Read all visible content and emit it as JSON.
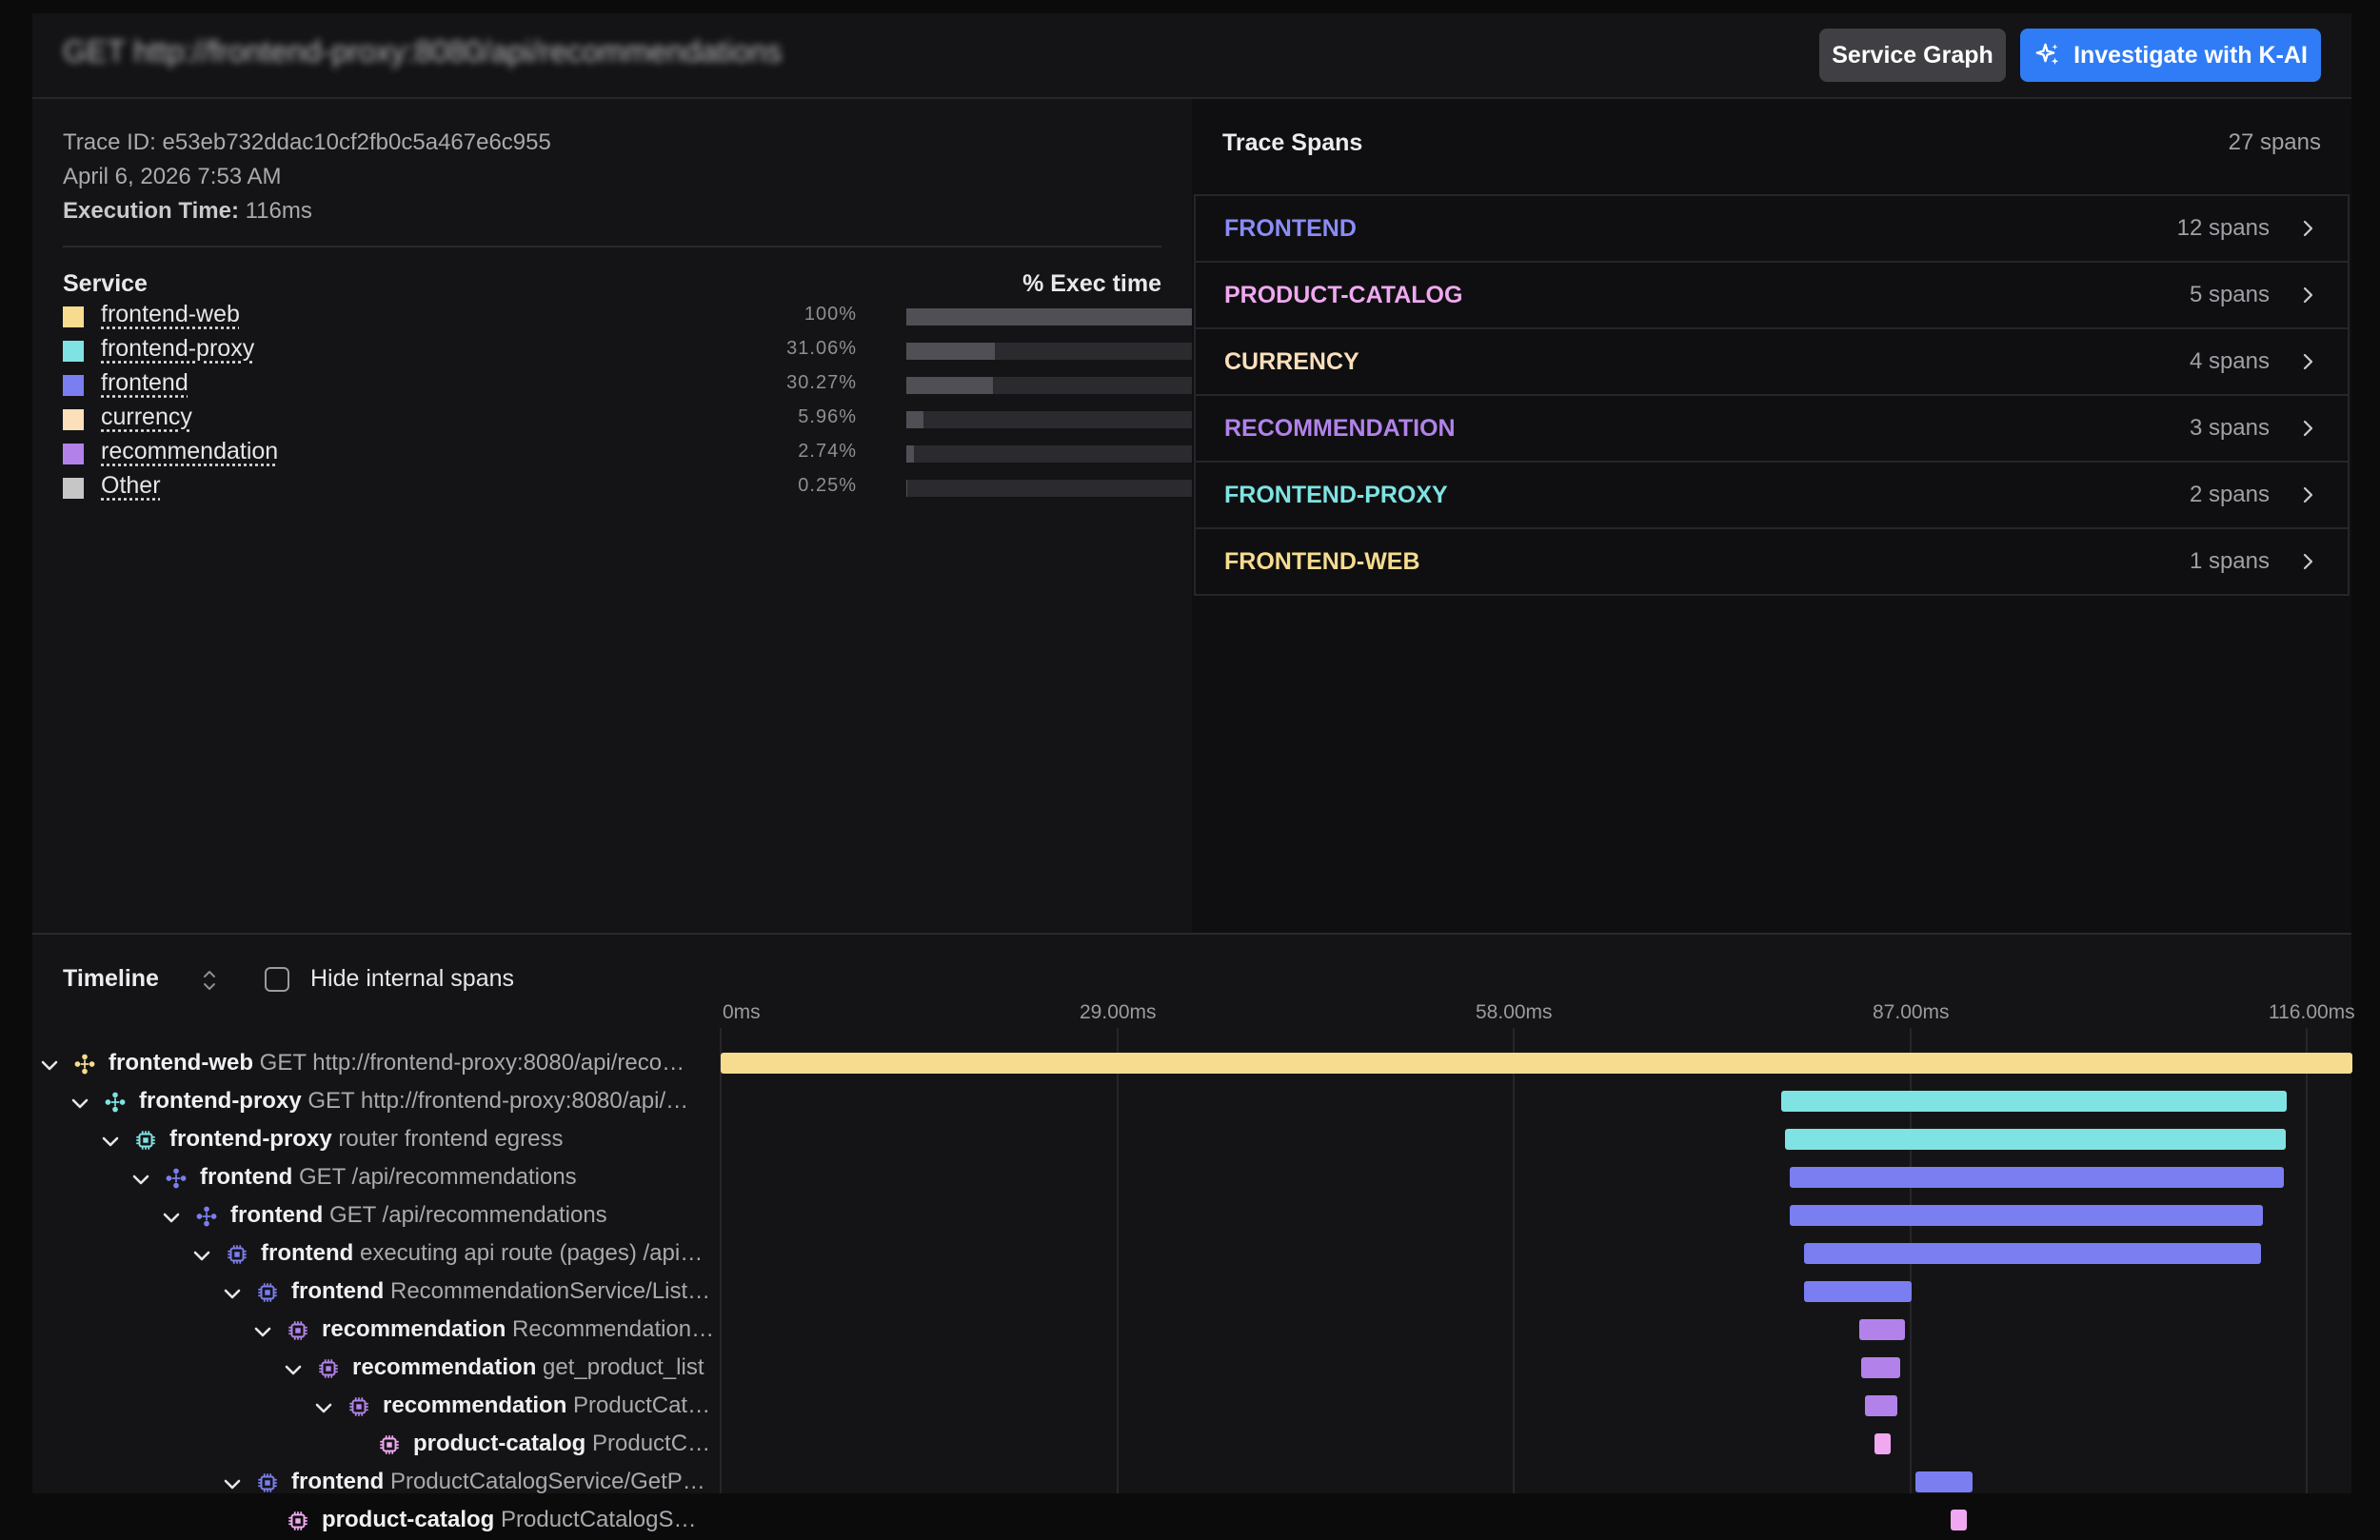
{
  "header": {
    "title": "GET http://frontend-proxy:8080/api/recommendations",
    "service_graph_label": "Service Graph",
    "investigate_label": "Investigate with K-AI"
  },
  "summary": {
    "trace_id_label": "Trace ID:",
    "trace_id": "e53eb732ddac10cf2fb0c5a467e6c955",
    "date": "April 6, 2026 7:53 AM",
    "execution_label": "Execution Time:",
    "execution_time": "116ms",
    "service_header": "Service",
    "exec_header": "% Exec time",
    "services": [
      {
        "name": "frontend-web",
        "pct": "100%",
        "fraction": 1.0,
        "color": "#f7dc8f"
      },
      {
        "name": "frontend-proxy",
        "pct": "31.06%",
        "fraction": 0.3106,
        "color": "#7fe3e3"
      },
      {
        "name": "frontend",
        "pct": "30.27%",
        "fraction": 0.3027,
        "color": "#7b7ef0"
      },
      {
        "name": "currency",
        "pct": "5.96%",
        "fraction": 0.0596,
        "color": "#fbe0bb"
      },
      {
        "name": "recommendation",
        "pct": "2.74%",
        "fraction": 0.0274,
        "color": "#b282ea"
      },
      {
        "name": "Other",
        "pct": "0.25%",
        "fraction": 0.0025,
        "color": "#c6c6c6"
      }
    ]
  },
  "spans_panel": {
    "title": "Trace Spans",
    "total": "27 spans",
    "groups": [
      {
        "name": "FRONTEND",
        "count": "12 spans",
        "color": "#8a8cf6"
      },
      {
        "name": "PRODUCT-CATALOG",
        "count": "5 spans",
        "color": "#f0a8f0"
      },
      {
        "name": "CURRENCY",
        "count": "4 spans",
        "color": "#fbe0bb"
      },
      {
        "name": "RECOMMENDATION",
        "count": "3 spans",
        "color": "#b282ea"
      },
      {
        "name": "FRONTEND-PROXY",
        "count": "2 spans",
        "color": "#7fe3e3"
      },
      {
        "name": "FRONTEND-WEB",
        "count": "1 spans",
        "color": "#f7dc8f"
      }
    ]
  },
  "timeline": {
    "label": "Timeline",
    "hide_internal_label": "Hide internal spans",
    "hide_internal_checked": false,
    "ticks": [
      "0ms",
      "29.00ms",
      "58.00ms",
      "87.00ms",
      "116.00ms"
    ],
    "total_ms": 116,
    "rows": [
      {
        "service": "frontend-web",
        "op": "GET http://frontend-proxy:8080/api/reco…",
        "icon": "network-icon",
        "color": "#f7dc8f",
        "start": 0.0,
        "end": 1.0
      },
      {
        "service": "frontend-proxy",
        "op": "GET http://frontend-proxy:8080/api/…",
        "icon": "network-icon",
        "color": "#7fe3e3",
        "start": 0.65,
        "end": 0.96
      },
      {
        "service": "frontend-proxy",
        "op": "router frontend egress",
        "icon": "chip-icon",
        "color": "#7fe3e3",
        "start": 0.652,
        "end": 0.959
      },
      {
        "service": "frontend",
        "op": "GET /api/recommendations",
        "icon": "network-icon",
        "color": "#7b7ef0",
        "start": 0.655,
        "end": 0.958
      },
      {
        "service": "frontend",
        "op": "GET /api/recommendations",
        "icon": "network-icon",
        "color": "#7b7ef0",
        "start": 0.655,
        "end": 0.945
      },
      {
        "service": "frontend",
        "op": "executing api route (pages) /api…",
        "icon": "chip-icon",
        "color": "#7b7ef0",
        "start": 0.664,
        "end": 0.944
      },
      {
        "service": "frontend",
        "op": "RecommendationService/List…",
        "icon": "chip-icon",
        "color": "#7b7ef0",
        "start": 0.664,
        "end": 0.73
      },
      {
        "service": "recommendation",
        "op": "Recommendation…",
        "icon": "chip-icon",
        "color": "#b282ea",
        "start": 0.698,
        "end": 0.726
      },
      {
        "service": "recommendation",
        "op": "get_product_list",
        "icon": "chip-icon",
        "color": "#b282ea",
        "start": 0.699,
        "end": 0.723
      },
      {
        "service": "recommendation",
        "op": "ProductCat…",
        "icon": "chip-icon",
        "color": "#b282ea",
        "start": 0.701,
        "end": 0.721
      },
      {
        "service": "product-catalog",
        "op": "ProductCat…",
        "icon": "chip-icon",
        "color": "#f0a8f0",
        "start": 0.707,
        "end": 0.717
      },
      {
        "service": "frontend",
        "op": "ProductCatalogService/GetP…",
        "icon": "chip-icon",
        "color": "#7b7ef0",
        "start": 0.732,
        "end": 0.767
      },
      {
        "service": "product-catalog",
        "op": "ProductCatalogS…",
        "icon": "chip-icon",
        "color": "#f0a8f0",
        "start": 0.754,
        "end": 0.764
      }
    ]
  }
}
